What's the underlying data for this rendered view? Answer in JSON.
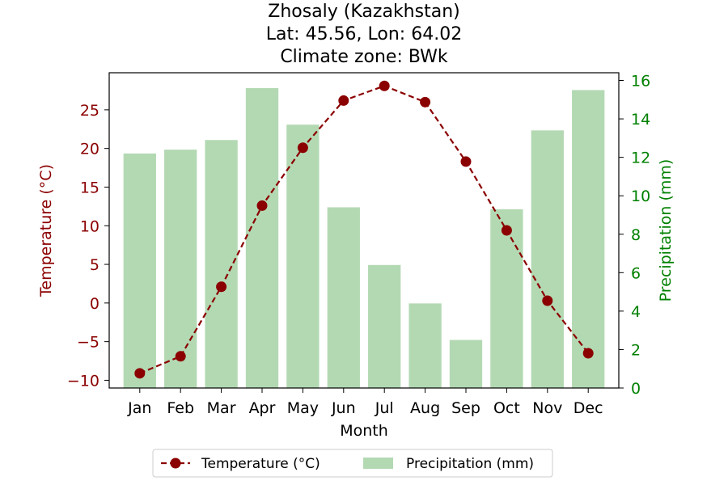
{
  "chart_data": {
    "type": "bar+line",
    "title_lines": [
      "Zhosaly (Kazakhstan)",
      "Lat: 45.56, Lon: 64.02",
      "Climate zone: BWk"
    ],
    "xlabel": "Month",
    "ylabel_left": "Temperature (°C)",
    "ylabel_right": "Precipitation (mm)",
    "categories": [
      "Jan",
      "Feb",
      "Mar",
      "Apr",
      "May",
      "Jun",
      "Jul",
      "Aug",
      "Sep",
      "Oct",
      "Nov",
      "Dec"
    ],
    "temperature": [
      -9.1,
      -6.9,
      2.1,
      12.6,
      20.1,
      26.2,
      28.1,
      26.0,
      18.3,
      9.4,
      0.3,
      -6.5
    ],
    "precipitation": [
      12.2,
      12.4,
      12.9,
      15.6,
      13.7,
      9.4,
      6.4,
      4.4,
      2.5,
      9.3,
      13.4,
      15.5
    ],
    "ylim_left": [
      -11,
      29.8
    ],
    "ylim_right": [
      0,
      16.4
    ],
    "yticks_left": [
      -10,
      -5,
      0,
      5,
      10,
      15,
      20,
      25
    ],
    "yticks_right": [
      0,
      2,
      4,
      6,
      8,
      10,
      12,
      14,
      16
    ],
    "legend": [
      "Temperature (°C)",
      "Precipitation (mm)"
    ],
    "legend_position": "bottom-center",
    "colors": {
      "temperature": "#8b0000",
      "precipitation_bar": "#b3d9b3",
      "left_axis": "#8b0000",
      "right_axis": "#008000"
    }
  }
}
